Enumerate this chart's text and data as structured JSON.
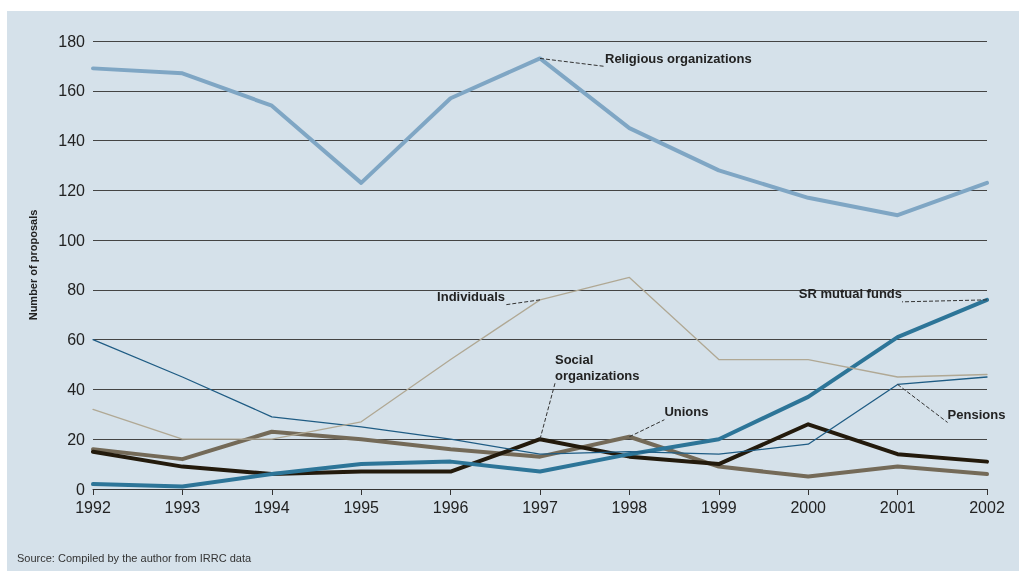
{
  "chart_data": {
    "type": "line",
    "ylabel": "Number of proposals",
    "categories": [
      "1992",
      "1993",
      "1994",
      "1995",
      "1996",
      "1997",
      "1998",
      "1999",
      "2000",
      "2001",
      "2002"
    ],
    "series": [
      {
        "name": "Religious organizations",
        "color": "#7fa6c4",
        "values": [
          169,
          167,
          154,
          123,
          157,
          173,
          145,
          128,
          117,
          110,
          123
        ]
      },
      {
        "name": "Individuals",
        "color": "#b0a894",
        "values": [
          32,
          20,
          20,
          27,
          52,
          76,
          85,
          52,
          52,
          45,
          46
        ]
      },
      {
        "name": "Pensions",
        "color": "#1f5c84",
        "values": [
          60,
          45,
          29,
          25,
          20,
          14,
          15,
          14,
          18,
          42,
          45
        ]
      },
      {
        "name": "SR mutual funds",
        "color": "#2d7598",
        "values": [
          2,
          1,
          6,
          10,
          11,
          7,
          14,
          20,
          37,
          61,
          76
        ]
      },
      {
        "name": "Social organizations",
        "color": "#231a0c",
        "values": [
          15,
          9,
          6,
          7,
          7,
          20,
          13,
          10,
          26,
          14,
          11
        ]
      },
      {
        "name": "Unions",
        "color": "#746a58",
        "values": [
          16,
          12,
          23,
          20,
          16,
          13,
          21,
          9,
          5,
          9,
          6
        ]
      }
    ],
    "ylim": [
      0,
      180
    ],
    "yticks": [
      0,
      20,
      40,
      60,
      80,
      100,
      120,
      140,
      160,
      180
    ],
    "grid": "y",
    "legend": false,
    "line_style": "solid",
    "annotations": [
      "Source: Compiled by the author from IRRC data"
    ]
  }
}
